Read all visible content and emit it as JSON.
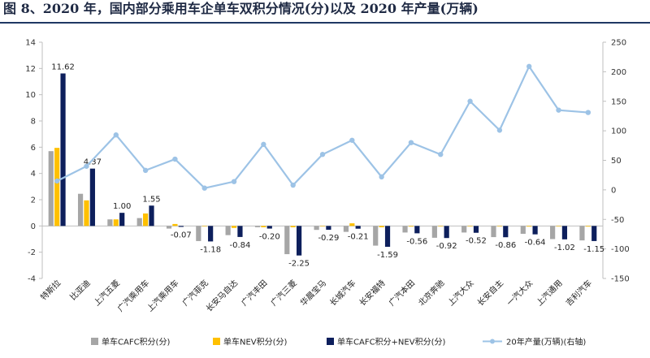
{
  "title": "图 8、2020 年，国内部分乘用车企单车双积分情况(分)以及 2020 年产量(万辆)",
  "chart_data": {
    "type": "bar+line",
    "categories": [
      "特斯拉",
      "比亚迪",
      "上汽五菱",
      "广汽乘用车",
      "上汽乘用车",
      "广汽菲克",
      "长安马自达",
      "广汽丰田",
      "广汽三菱",
      "华晨宝马",
      "长城汽车",
      "长安福特",
      "广汽本田",
      "北京奔驰",
      "上汽大众",
      "长安自主",
      "一汽大众",
      "上汽通用",
      "吉利汽车"
    ],
    "series": [
      {
        "name": "单车CAFC积分(分)",
        "color": "#a6a6a6",
        "values": [
          5.7,
          2.45,
          0.5,
          0.6,
          -0.2,
          -1.15,
          -0.7,
          -0.1,
          -2.15,
          -0.3,
          -0.45,
          -1.5,
          -0.5,
          -0.9,
          -0.5,
          -0.85,
          -0.6,
          -1.0,
          -1.1
        ]
      },
      {
        "name": "单车NEV积分(分)",
        "color": "#ffc000",
        "values": [
          5.95,
          1.95,
          0.5,
          0.95,
          0.15,
          -0.03,
          -0.15,
          -0.1,
          -0.1,
          -0.02,
          0.2,
          -0.1,
          -0.05,
          -0.02,
          -0.02,
          -0.02,
          -0.05,
          -0.02,
          -0.05
        ]
      },
      {
        "name": "单车CAFC积分+NEV积分(分)",
        "color": "#0d1f5c",
        "values": [
          11.62,
          4.37,
          1.0,
          1.55,
          -0.07,
          -1.18,
          -0.84,
          -0.2,
          -2.25,
          -0.29,
          -0.21,
          -1.59,
          -0.56,
          -0.92,
          -0.52,
          -0.86,
          -0.64,
          -1.02,
          -1.15
        ]
      }
    ],
    "line": {
      "name": "20年产量(万辆)(右轴)",
      "color": "#9dc3e6",
      "values": [
        15,
        40,
        93,
        33,
        52,
        3,
        14,
        77,
        8,
        60,
        84,
        22,
        80,
        60,
        150,
        101,
        209,
        135,
        131
      ]
    },
    "data_labels": [
      "11.62",
      "4.37",
      "1.00",
      "1.55",
      "-0.07",
      "-1.18",
      "-0.84",
      "-0.20",
      "-2.25",
      "-0.29",
      "-0.21",
      "-1.59",
      "-0.56",
      "-0.92",
      "-0.52",
      "-0.86",
      "-0.64",
      "-1.02",
      "-1.15"
    ],
    "y_left": {
      "min": -4,
      "max": 14,
      "step": 2,
      "ticks": [
        "-4",
        "-2",
        "0",
        "2",
        "4",
        "6",
        "8",
        "10",
        "12",
        "14"
      ]
    },
    "y_right": {
      "min": -150,
      "max": 250,
      "step": 50,
      "ticks": [
        "-150",
        "-100",
        "-50",
        "0",
        "50",
        "100",
        "150",
        "200",
        "250"
      ]
    },
    "grid": false,
    "legend_position": "bottom"
  }
}
